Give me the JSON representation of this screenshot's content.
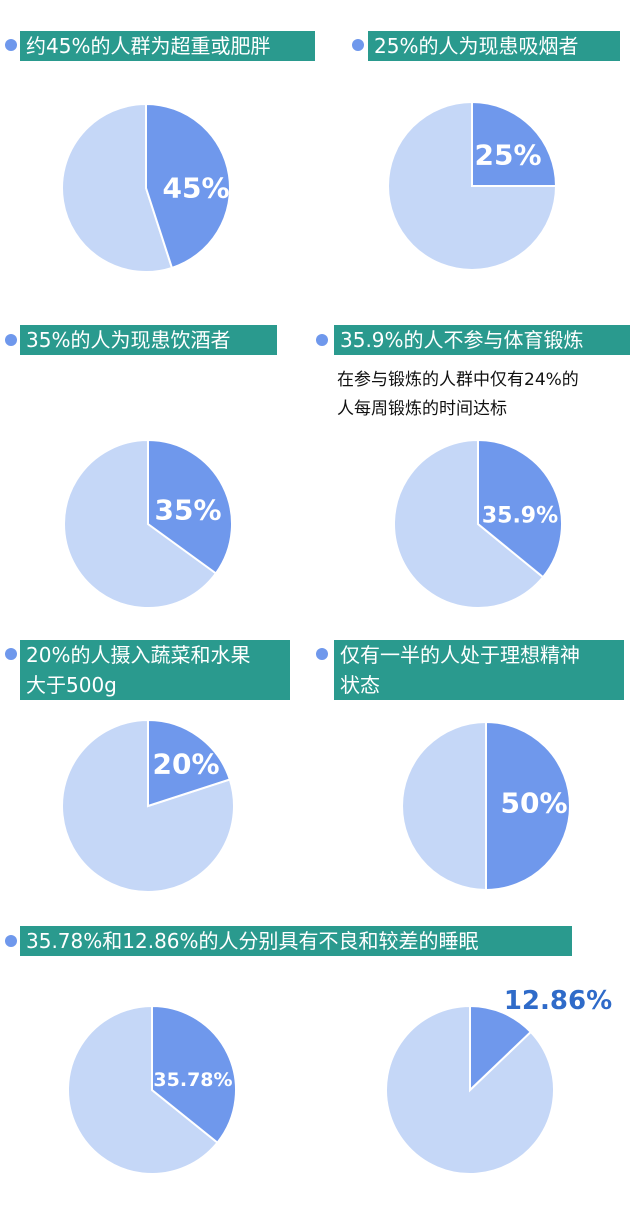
{
  "colors": {
    "banner_bg": "#2a9a8e",
    "banner_text": "#ffffff",
    "slice_highlight": "#6f98ec",
    "slice_rest": "#c5d7f7",
    "slice_stroke": "#ffffff",
    "outside_label": "#2f6bc9"
  },
  "panels": [
    {
      "title": "约45%的人群为超重或肥胖"
    },
    {
      "title": "25%的人为现患吸烟者"
    },
    {
      "title": "35%的人为现患饮酒者"
    },
    {
      "title": "35.9%的人不参与体育锻炼",
      "note": "在参与锻炼的人群中仅有24%的\n人每周锻炼的时间达标"
    },
    {
      "title": "20%的人摄入蔬菜和水果\n大于500g"
    },
    {
      "title": "仅有一半的人处于理想精神\n状态"
    },
    {
      "title": "35.78%和12.86%的人分别具有不良和较差的睡眠"
    }
  ],
  "chart_data": [
    {
      "type": "pie",
      "label": "45%",
      "slices": [
        {
          "value": 45,
          "highlight": true
        },
        {
          "value": 55,
          "highlight": false
        }
      ]
    },
    {
      "type": "pie",
      "label": "25%",
      "slices": [
        {
          "value": 25,
          "highlight": true
        },
        {
          "value": 75,
          "highlight": false
        }
      ]
    },
    {
      "type": "pie",
      "label": "35%",
      "slices": [
        {
          "value": 35,
          "highlight": true
        },
        {
          "value": 65,
          "highlight": false
        }
      ]
    },
    {
      "type": "pie",
      "label": "35.9%",
      "slices": [
        {
          "value": 35.9,
          "highlight": true
        },
        {
          "value": 64.1,
          "highlight": false
        }
      ]
    },
    {
      "type": "pie",
      "label": "20%",
      "slices": [
        {
          "value": 20,
          "highlight": true
        },
        {
          "value": 80,
          "highlight": false
        }
      ]
    },
    {
      "type": "pie",
      "label": "50%",
      "slices": [
        {
          "value": 50,
          "highlight": true
        },
        {
          "value": 50,
          "highlight": false
        }
      ]
    },
    {
      "type": "pie",
      "label": "35.78%",
      "slices": [
        {
          "value": 35.78,
          "highlight": true
        },
        {
          "value": 64.22,
          "highlight": false
        }
      ]
    },
    {
      "type": "pie",
      "label": "12.86%",
      "label_position": "outside",
      "slices": [
        {
          "value": 12.86,
          "highlight": true
        },
        {
          "value": 87.14,
          "highlight": false
        }
      ]
    }
  ]
}
